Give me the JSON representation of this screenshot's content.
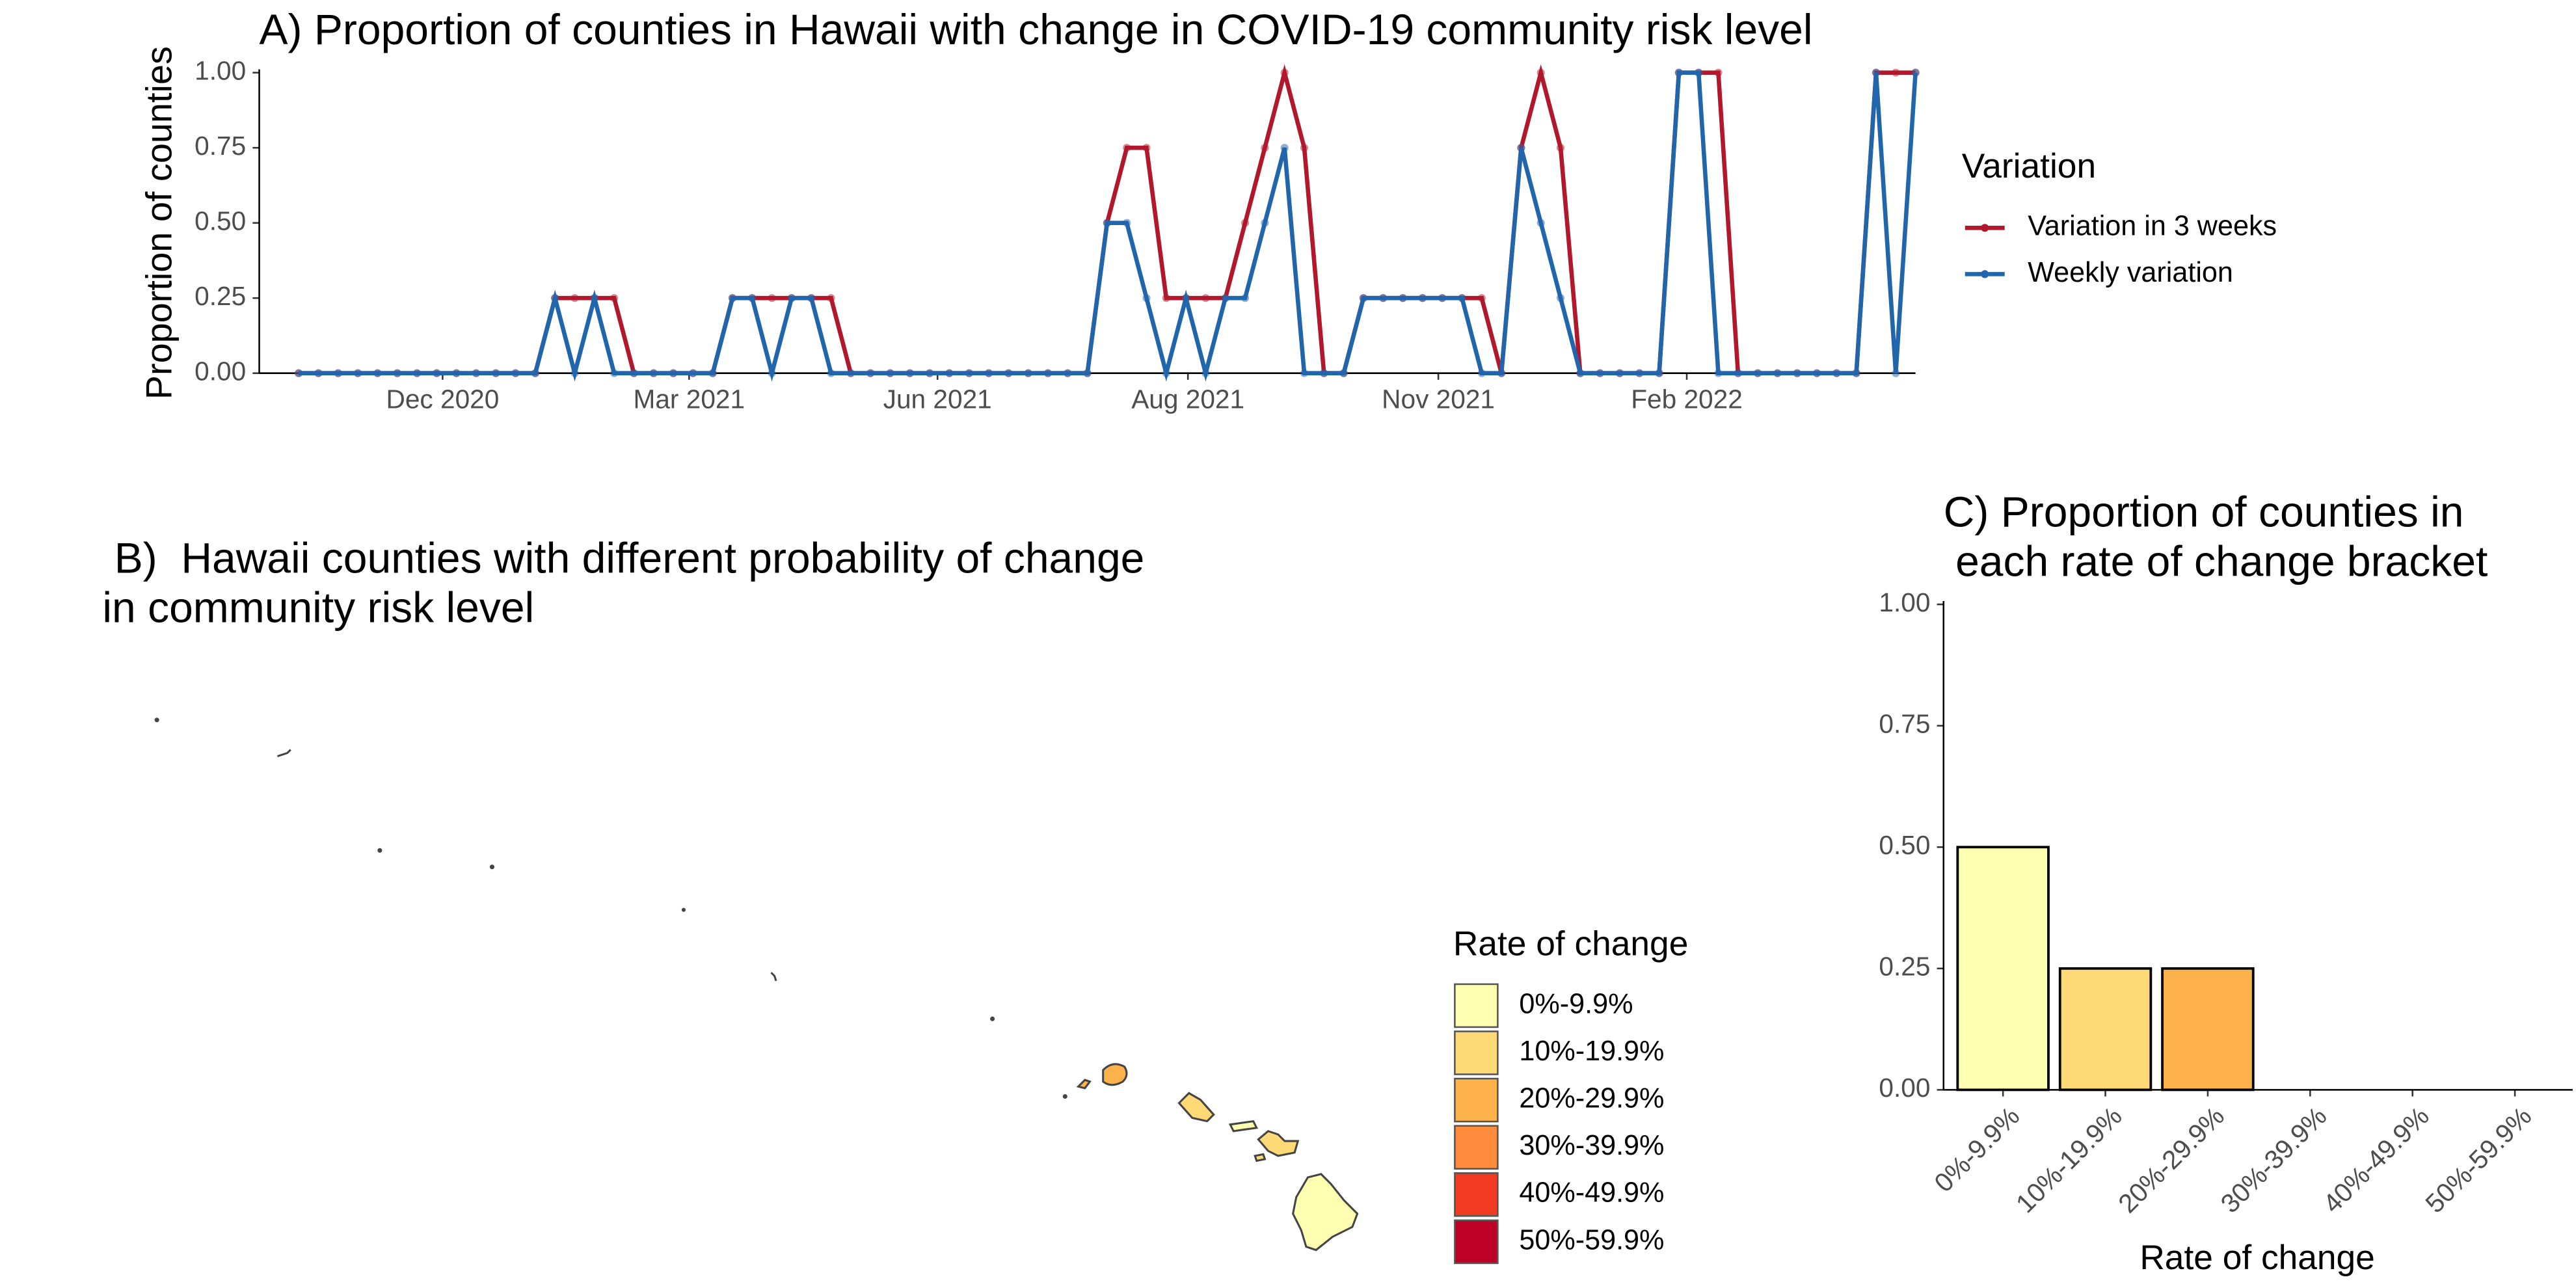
{
  "chart_data": [
    {
      "type": "line",
      "title": "A) Proportion of counties in Hawaii with change in COVID-19 community risk level",
      "y_label": "Proportion of counties",
      "x": [
        0,
        1,
        2,
        3,
        4,
        5,
        6,
        7,
        8,
        9,
        10,
        11,
        12,
        13,
        14,
        15,
        16,
        17,
        18,
        19,
        20,
        21,
        22,
        23,
        24,
        25,
        26,
        27,
        28,
        29,
        30,
        31,
        32,
        33,
        34,
        35,
        36,
        37,
        38,
        39,
        40,
        41,
        42,
        43,
        44,
        45,
        46,
        47,
        48,
        49,
        50,
        51,
        52,
        53,
        54,
        55,
        56,
        57,
        58,
        59,
        60,
        61,
        62,
        63,
        64,
        65,
        66,
        67,
        68,
        69,
        70,
        71,
        72,
        73,
        74,
        75,
        76,
        77,
        78,
        79,
        80,
        81,
        82
      ],
      "xlim": [
        -2,
        82
      ],
      "xticks": [
        {
          "value": 7.3,
          "label": "Dec 2020"
        },
        {
          "value": 19.8,
          "label": "Mar 2021"
        },
        {
          "value": 32.4,
          "label": "Jun 2021"
        },
        {
          "value": 45.1,
          "label": "Aug 2021"
        },
        {
          "value": 57.8,
          "label": "Nov 2021"
        },
        {
          "value": 70.4,
          "label": "Feb 2022"
        }
      ],
      "ylim": [
        0,
        1
      ],
      "yticks": [
        {
          "value": 0,
          "label": "0.00"
        },
        {
          "value": 0.25,
          "label": "0.25"
        },
        {
          "value": 0.5,
          "label": "0.50"
        },
        {
          "value": 0.75,
          "label": "0.75"
        },
        {
          "value": 1,
          "label": "1.00"
        }
      ],
      "legend_title": "Variation",
      "series": [
        {
          "name": "Variation in 3 weeks",
          "color": "#b2182b",
          "values": [
            0,
            0,
            0,
            0,
            0,
            0,
            0,
            0,
            0,
            0,
            0,
            0,
            0,
            0.25,
            0.25,
            0.25,
            0.25,
            0,
            0,
            0,
            0,
            0,
            0.25,
            0.25,
            0.25,
            0.25,
            0.25,
            0.25,
            0,
            0,
            0,
            0,
            0,
            0,
            0,
            0,
            0,
            0,
            0,
            0,
            0,
            0.5,
            0.75,
            0.75,
            0.25,
            0.25,
            0.25,
            0.25,
            0.5,
            0.75,
            1,
            0.75,
            0,
            0,
            0.25,
            0.25,
            0.25,
            0.25,
            0.25,
            0.25,
            0.25,
            0,
            0.75,
            1,
            0.75,
            0,
            0,
            0,
            0,
            0,
            1,
            1,
            1,
            0,
            0,
            0,
            0,
            0,
            0,
            0,
            1,
            1,
            1
          ]
        },
        {
          "name": "Weekly variation",
          "color": "#2166ac",
          "values": [
            0,
            0,
            0,
            0,
            0,
            0,
            0,
            0,
            0,
            0,
            0,
            0,
            0,
            0.25,
            0,
            0.25,
            0,
            0,
            0,
            0,
            0,
            0,
            0.25,
            0.25,
            0,
            0.25,
            0.25,
            0,
            0,
            0,
            0,
            0,
            0,
            0,
            0,
            0,
            0,
            0,
            0,
            0,
            0,
            0.5,
            0.5,
            0.25,
            0,
            0.25,
            0,
            0.25,
            0.25,
            0.5,
            0.75,
            0,
            0,
            0,
            0.25,
            0.25,
            0.25,
            0.25,
            0.25,
            0.25,
            0,
            0,
            0.75,
            0.5,
            0.25,
            0,
            0,
            0,
            0,
            0,
            1,
            1,
            0,
            0,
            0,
            0,
            0,
            0,
            0,
            0,
            1,
            0,
            1
          ]
        }
      ]
    },
    {
      "type": "map",
      "title_lines": [
        " B)  Hawaii counties with different probability of change",
        "in community risk level"
      ],
      "legend_title": "Rate of change",
      "categories": [
        "0%-9.9%",
        "10%-19.9%",
        "20%-29.9%",
        "30%-39.9%",
        "40%-49.9%",
        "50%-59.9%"
      ],
      "colors": [
        "#ffffb2",
        "#fed976",
        "#feb24c",
        "#fd8d3c",
        "#f03b20",
        "#bd0026"
      ]
    },
    {
      "type": "bar",
      "title_lines": [
        "C) Proportion of counties in",
        " each rate of change bracket"
      ],
      "x_label": "Rate of change",
      "categories": [
        "0%-9.9%",
        "10%-19.9%",
        "20%-29.9%",
        "30%-39.9%",
        "40%-49.9%",
        "50%-59.9%"
      ],
      "values": [
        0.5,
        0.25,
        0.25,
        0,
        0,
        0
      ],
      "colors": [
        "#ffffb2",
        "#fed976",
        "#feb24c",
        "#fd8d3c",
        "#f03b20",
        "#bd0026"
      ],
      "ylim": [
        0,
        1
      ],
      "yticks": [
        {
          "value": 0,
          "label": "0.00"
        },
        {
          "value": 0.25,
          "label": "0.25"
        },
        {
          "value": 0.5,
          "label": "0.50"
        },
        {
          "value": 0.75,
          "label": "0.75"
        },
        {
          "value": 1,
          "label": "1.00"
        }
      ]
    }
  ]
}
